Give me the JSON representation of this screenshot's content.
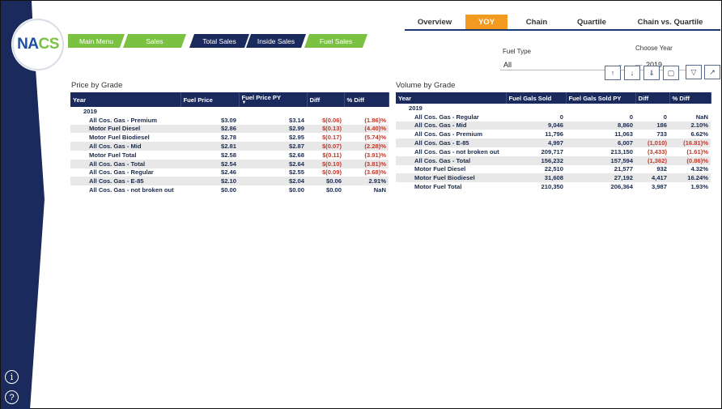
{
  "logo": {
    "left": "NA",
    "right": "CS"
  },
  "sidebar": {
    "info_icon": "info-icon",
    "help_icon": "help-icon",
    "info_glyph": "i",
    "help_glyph": "?"
  },
  "top_tabs": [
    {
      "label": "Overview",
      "active": false
    },
    {
      "label": "YOY",
      "active": true
    },
    {
      "label": "Chain",
      "active": false
    },
    {
      "label": "Quartile",
      "active": false
    },
    {
      "label": "Chain vs. Quartile",
      "active": false
    }
  ],
  "nav_buttons": [
    {
      "label": "Main Menu",
      "color": "#7bc142"
    },
    {
      "label": "Sales",
      "color": "#7bc142"
    },
    {
      "label": "Total Sales",
      "color": "#1a2a5c"
    },
    {
      "label": "Inside Sales",
      "color": "#1a2a5c"
    },
    {
      "label": "Fuel Sales",
      "color": "#7bc142"
    }
  ],
  "slicers": {
    "fuel_type": {
      "label": "Fuel Type",
      "value": "All"
    },
    "choose_year": {
      "label": "Choose Year",
      "value": "2019"
    }
  },
  "colors": {
    "navy": "#1a2a5c",
    "green": "#7bc142",
    "orange": "#f39b21",
    "negative": "#c0392b"
  },
  "price_table": {
    "title": "Price by Grade",
    "headers": [
      "Year",
      "Fuel Price",
      "Fuel Price PY",
      "Diff",
      "% Diff"
    ],
    "year": "2019",
    "rows": [
      [
        "All Cos. Gas - Premium",
        "$3.09",
        "$3.14",
        "$(0.06)",
        "(1.86)%"
      ],
      [
        "Motor Fuel Diesel",
        "$2.86",
        "$2.99",
        "$(0.13)",
        "(4.40)%"
      ],
      [
        "Motor Fuel Biodiesel",
        "$2.78",
        "$2.95",
        "$(0.17)",
        "(5.74)%"
      ],
      [
        "All Cos. Gas - Mid",
        "$2.81",
        "$2.87",
        "$(0.07)",
        "(2.28)%"
      ],
      [
        "Motor Fuel Total",
        "$2.58",
        "$2.68",
        "$(0.11)",
        "(3.91)%"
      ],
      [
        "All Cos. Gas - Total",
        "$2.54",
        "$2.64",
        "$(0.10)",
        "(3.81)%"
      ],
      [
        "All Cos. Gas - Regular",
        "$2.46",
        "$2.55",
        "$(0.09)",
        "(3.68)%"
      ],
      [
        "All Cos. Gas - E-85",
        "$2.10",
        "$2.04",
        "$0.06",
        "2.91%"
      ],
      [
        "All Cos. Gas - not broken out",
        "$0.00",
        "$0.00",
        "$0.00",
        "NaN"
      ]
    ]
  },
  "volume_table": {
    "title": "Volume by Grade",
    "headers": [
      "Year",
      "Fuel Gals Sold",
      "Fuel Gals Sold PY",
      "Diff",
      "% Diff"
    ],
    "year": "2019",
    "rows": [
      [
        "All Cos. Gas - Regular",
        "0",
        "0",
        "0",
        "NaN"
      ],
      [
        "All Cos. Gas - Mid",
        "9,046",
        "8,860",
        "186",
        "2.10%"
      ],
      [
        "All Cos. Gas - Premium",
        "11,796",
        "11,063",
        "733",
        "6.62%"
      ],
      [
        "All Cos. Gas - E-85",
        "4,997",
        "6,007",
        "(1,010)",
        "(16.81)%"
      ],
      [
        "All Cos. Gas - not broken out",
        "209,717",
        "213,150",
        "(3,433)",
        "(1.61)%"
      ],
      [
        "All Cos. Gas - Total",
        "156,232",
        "157,594",
        "(1,362)",
        "(0.86)%"
      ],
      [
        "Motor Fuel Diesel",
        "22,510",
        "21,577",
        "932",
        "4.32%"
      ],
      [
        "Motor Fuel Biodiesel",
        "31,608",
        "27,192",
        "4,417",
        "16.24%"
      ],
      [
        "Motor Fuel Total",
        "210,350",
        "206,364",
        "3,987",
        "1.93%"
      ]
    ]
  }
}
